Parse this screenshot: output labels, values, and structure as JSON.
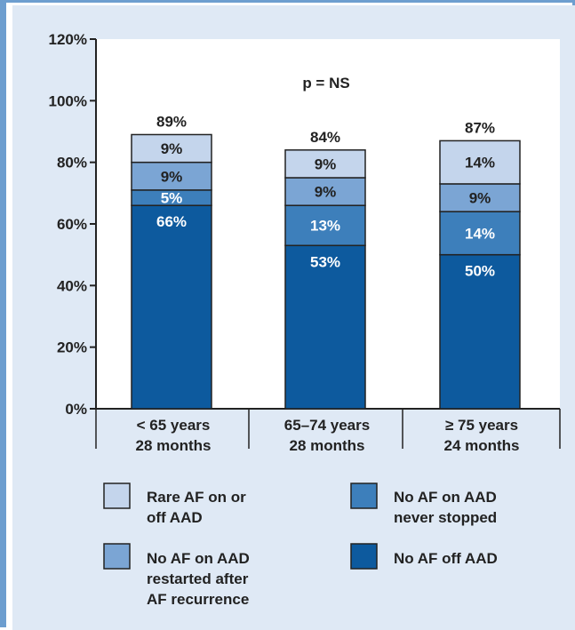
{
  "chart_data": {
    "type": "bar",
    "stacked": true,
    "annotation": "p = NS",
    "ylim": [
      0,
      120
    ],
    "yticks": [
      "0%",
      "20%",
      "40%",
      "60%",
      "80%",
      "100%",
      "120%"
    ],
    "ytick_values": [
      0,
      20,
      40,
      60,
      80,
      100,
      120
    ],
    "categories": [
      [
        "< 65 years",
        "28 months"
      ],
      [
        "65–74 years",
        "28 months"
      ],
      [
        "≥ 75 years",
        "24 months"
      ]
    ],
    "totals": [
      "89%",
      "84%",
      "87%"
    ],
    "total_values": [
      89,
      84,
      87
    ],
    "series": [
      {
        "name": "No AF off AAD",
        "values": [
          66,
          53,
          50
        ],
        "labels": [
          "66%",
          "53%",
          "50%"
        ],
        "color": "#0d5a9e",
        "label_color": "#ffffff"
      },
      {
        "name": "No AF on AAD never stopped",
        "values": [
          5,
          13,
          14
        ],
        "labels": [
          "5%",
          "13%",
          "14%"
        ],
        "color": "#3d7fbb",
        "label_color": "#ffffff"
      },
      {
        "name": "No AF on AAD restarted after AF recurrence",
        "values": [
          9,
          9,
          9
        ],
        "labels": [
          "9%",
          "9%",
          "9%"
        ],
        "color": "#7ba5d4",
        "label_color": "#222222"
      },
      {
        "name": "Rare AF on or off AAD",
        "values": [
          9,
          9,
          14
        ],
        "labels": [
          "9%",
          "9%",
          "14%"
        ],
        "color": "#c4d5ec",
        "label_color": "#222222"
      }
    ],
    "legend": [
      {
        "lines": [
          "Rare AF on or",
          "off AAD"
        ],
        "color": "#c4d5ec"
      },
      {
        "lines": [
          "No AF on AAD",
          "never stopped"
        ],
        "color": "#3d7fbb"
      },
      {
        "lines": [
          "No AF on AAD",
          "restarted after",
          "AF recurrence"
        ],
        "color": "#7ba5d4"
      },
      {
        "lines": [
          "No AF off AAD"
        ],
        "color": "#0d5a9e"
      }
    ]
  }
}
